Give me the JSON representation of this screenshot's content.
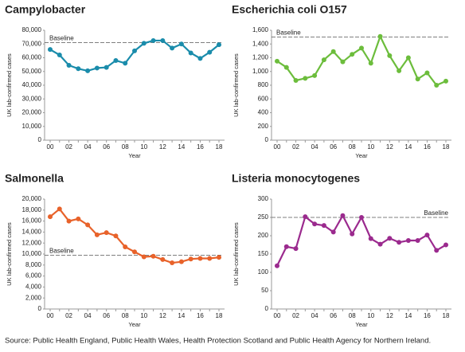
{
  "chart_data": [
    {
      "type": "line",
      "title": "Campylobacter",
      "y_label": "UK lab-confirmed cases",
      "x_label": "Year",
      "categories": [
        "00",
        null,
        "02",
        null,
        "04",
        null,
        "06",
        null,
        "08",
        null,
        "10",
        null,
        "12",
        null,
        "14",
        null,
        "16",
        null,
        "18"
      ],
      "series": [
        {
          "color": "#1a8cab",
          "values": [
            66000,
            62000,
            54500,
            52000,
            50500,
            52500,
            53000,
            58000,
            56000,
            65000,
            70500,
            72500,
            72500,
            67000,
            70000,
            63500,
            59500,
            64000,
            69500
          ]
        }
      ],
      "baseline": {
        "label": "Baseline",
        "value": 71000
      },
      "ylim": [
        0,
        80000
      ],
      "yticks": [
        0,
        {
          "value": 10000,
          "label": "10,000"
        },
        {
          "value": 20000,
          "label": "20,000"
        },
        {
          "value": 30000,
          "label": "30,000"
        },
        {
          "value": 40000,
          "label": "40,000"
        },
        {
          "value": 50000,
          "label": "50,000"
        },
        {
          "value": 60000,
          "label": "60,000"
        },
        {
          "value": 70000,
          "label": "70,000"
        },
        {
          "value": 80000,
          "label": "80,000"
        }
      ]
    },
    {
      "type": "line",
      "title": "Escherichia coli O157",
      "y_label": "UK lab-confirmed cases",
      "x_label": "Year",
      "categories": [
        "00",
        null,
        "02",
        null,
        "04",
        null,
        "06",
        null,
        "08",
        null,
        "10",
        null,
        "12",
        null,
        "14",
        null,
        "16",
        null,
        "18"
      ],
      "series": [
        {
          "color": "#6cbd3c",
          "values": [
            1150,
            1060,
            870,
            900,
            940,
            1170,
            1290,
            1140,
            1250,
            1340,
            1120,
            1510,
            1230,
            1010,
            1200,
            890,
            980,
            800,
            860
          ]
        }
      ],
      "baseline": {
        "label": "Baseline",
        "value": 1500
      },
      "ylim": [
        0,
        1600
      ],
      "yticks": [
        0,
        200,
        400,
        600,
        800,
        {
          "value": 1000,
          "label": "1,000"
        },
        {
          "value": 1200,
          "label": "1,200"
        },
        {
          "value": 1400,
          "label": "1,400"
        },
        {
          "value": 1600,
          "label": "1,600"
        }
      ]
    },
    {
      "type": "line",
      "title": "Salmonella",
      "y_label": "UK lab-confirmed cases",
      "x_label": "Year",
      "categories": [
        "00",
        null,
        "02",
        null,
        "04",
        null,
        "06",
        null,
        "08",
        null,
        "10",
        null,
        "12",
        null,
        "14",
        null,
        "16",
        null,
        "18"
      ],
      "series": [
        {
          "color": "#e8622a",
          "values": [
            16800,
            18200,
            16000,
            16400,
            15300,
            13500,
            13900,
            13300,
            11300,
            10400,
            9500,
            9600,
            9000,
            8400,
            8600,
            9100,
            9200,
            9200,
            9400
          ]
        }
      ],
      "baseline": {
        "label": "Baseline",
        "value": 9800
      },
      "ylim": [
        0,
        20000
      ],
      "yticks": [
        0,
        {
          "value": 2000,
          "label": "2,000"
        },
        {
          "value": 4000,
          "label": "4,000"
        },
        {
          "value": 6000,
          "label": "6,000"
        },
        {
          "value": 8000,
          "label": "8,000"
        },
        {
          "value": 10000,
          "label": "10,000"
        },
        {
          "value": 12000,
          "label": "12,000"
        },
        {
          "value": 14000,
          "label": "14,000"
        },
        {
          "value": 16000,
          "label": "16,000"
        },
        {
          "value": 18000,
          "label": "18,000"
        },
        {
          "value": 20000,
          "label": "20,000"
        }
      ]
    },
    {
      "type": "line",
      "title": "Listeria monocytogenes",
      "y_label": "UK lab-confirmed cases",
      "x_label": "Year",
      "categories": [
        "00",
        null,
        "02",
        null,
        "04",
        null,
        "06",
        null,
        "08",
        null,
        "10",
        null,
        "12",
        null,
        "14",
        null,
        "16",
        null,
        "18"
      ],
      "series": [
        {
          "color": "#9b2a8e",
          "values": [
            118,
            170,
            165,
            252,
            232,
            228,
            210,
            255,
            205,
            250,
            192,
            177,
            193,
            182,
            187,
            187,
            202,
            160,
            175
          ]
        }
      ],
      "baseline": {
        "label": "Baseline",
        "value": 250
      },
      "ylim": [
        0,
        300
      ],
      "yticks": [
        0,
        50,
        100,
        150,
        200,
        250,
        300
      ]
    }
  ],
  "source": "Source: Public Health England, Public Health Wales, Health Protection Scotland and Public Health Agency for Northern Ireland."
}
